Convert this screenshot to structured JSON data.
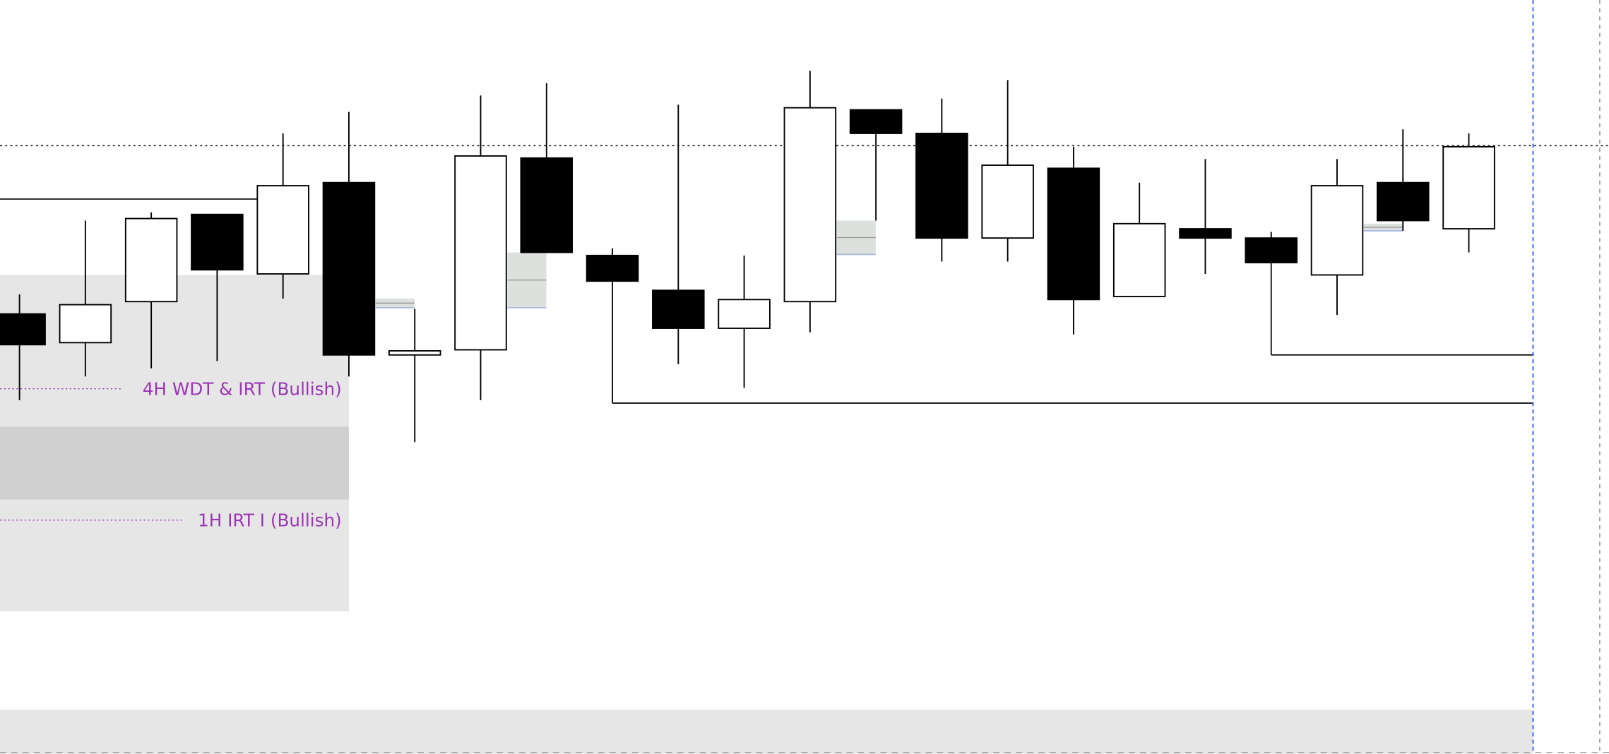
{
  "chart_data": {
    "type": "candlestick",
    "title": "",
    "xlabel": "",
    "ylabel": "",
    "grid": false,
    "colors": {
      "bull_fill": "#ffffff",
      "bear_fill": "#000000",
      "outline": "#000000",
      "label": "#9c36b5",
      "zone": "#e6e6e6",
      "zone_dark": "#d0d0d0",
      "gap": "#dde1dd",
      "gap_edge": "#a9b7dc",
      "cursor": "#3b5bff",
      "border": "#9e9e9e"
    },
    "candles": [
      {
        "o": 429,
        "h": 448,
        "l": 345,
        "c": 399
      },
      {
        "o": 401,
        "h": 520,
        "l": 368,
        "c": 438
      },
      {
        "o": 441,
        "h": 528,
        "l": 376,
        "c": 522
      },
      {
        "o": 526,
        "h": 526,
        "l": 383,
        "c": 472
      },
      {
        "o": 468,
        "h": 605,
        "l": 444,
        "c": 554
      },
      {
        "o": 557,
        "h": 626,
        "l": 368,
        "c": 389
      },
      {
        "o": 389,
        "h": 434,
        "l": 304,
        "c": 393
      },
      {
        "o": 394,
        "h": 642,
        "l": 345,
        "c": 583
      },
      {
        "o": 581,
        "h": 654,
        "l": 489,
        "c": 489
      },
      {
        "o": 486,
        "h": 493,
        "l": 461,
        "c": 461
      },
      {
        "o": 452,
        "h": 633,
        "l": 380,
        "c": 415
      },
      {
        "o": 415,
        "h": 486,
        "l": 357,
        "c": 443
      },
      {
        "o": 441,
        "h": 666,
        "l": 411,
        "c": 630
      },
      {
        "o": 628,
        "h": 628,
        "l": 520,
        "c": 605
      },
      {
        "o": 605,
        "h": 639,
        "l": 480,
        "c": 503
      },
      {
        "o": 503,
        "h": 657,
        "l": 480,
        "c": 574
      },
      {
        "o": 571,
        "h": 592,
        "l": 409,
        "c": 443
      },
      {
        "o": 446,
        "h": 557,
        "l": 446,
        "c": 517
      },
      {
        "o": 512,
        "h": 580,
        "l": 468,
        "c": 503
      },
      {
        "o": 503,
        "h": 509,
        "l": 479,
        "c": 479
      },
      {
        "o": 467,
        "h": 580,
        "l": 428,
        "c": 554
      },
      {
        "o": 557,
        "h": 609,
        "l": 510,
        "c": 520
      },
      {
        "o": 512,
        "h": 605,
        "l": 489,
        "c": 592
      }
    ],
    "reference_level": 593,
    "levels": [
      {
        "price": 541,
        "from_candle": -1,
        "to_candle": 4
      },
      {
        "price": 342,
        "from_candle": 9,
        "to_candle": 23
      },
      {
        "price": 389,
        "from_candle": 19,
        "to_candle": 23
      }
    ],
    "zones": [
      {
        "top": 467,
        "bottom": 139,
        "label": "",
        "shade": "zone"
      },
      {
        "top": 319,
        "bottom": 248,
        "label": "",
        "shade": "zone_dark"
      },
      {
        "top": 43,
        "bottom": 0,
        "label": "",
        "shade": "zone"
      }
    ],
    "zone_labels": [
      {
        "text": "4H WDT & IRT (Bullish)",
        "price": 356
      },
      {
        "text": "1H IRT I (Bullish)",
        "price": 228
      }
    ],
    "gaps": [
      {
        "after_candle": 5,
        "top": 444,
        "bottom": 435
      },
      {
        "after_candle": 7,
        "top": 489,
        "bottom": 435
      },
      {
        "after_candle": 12,
        "top": 520,
        "bottom": 487
      },
      {
        "after_candle": 20,
        "top": 517,
        "bottom": 510
      }
    ]
  }
}
